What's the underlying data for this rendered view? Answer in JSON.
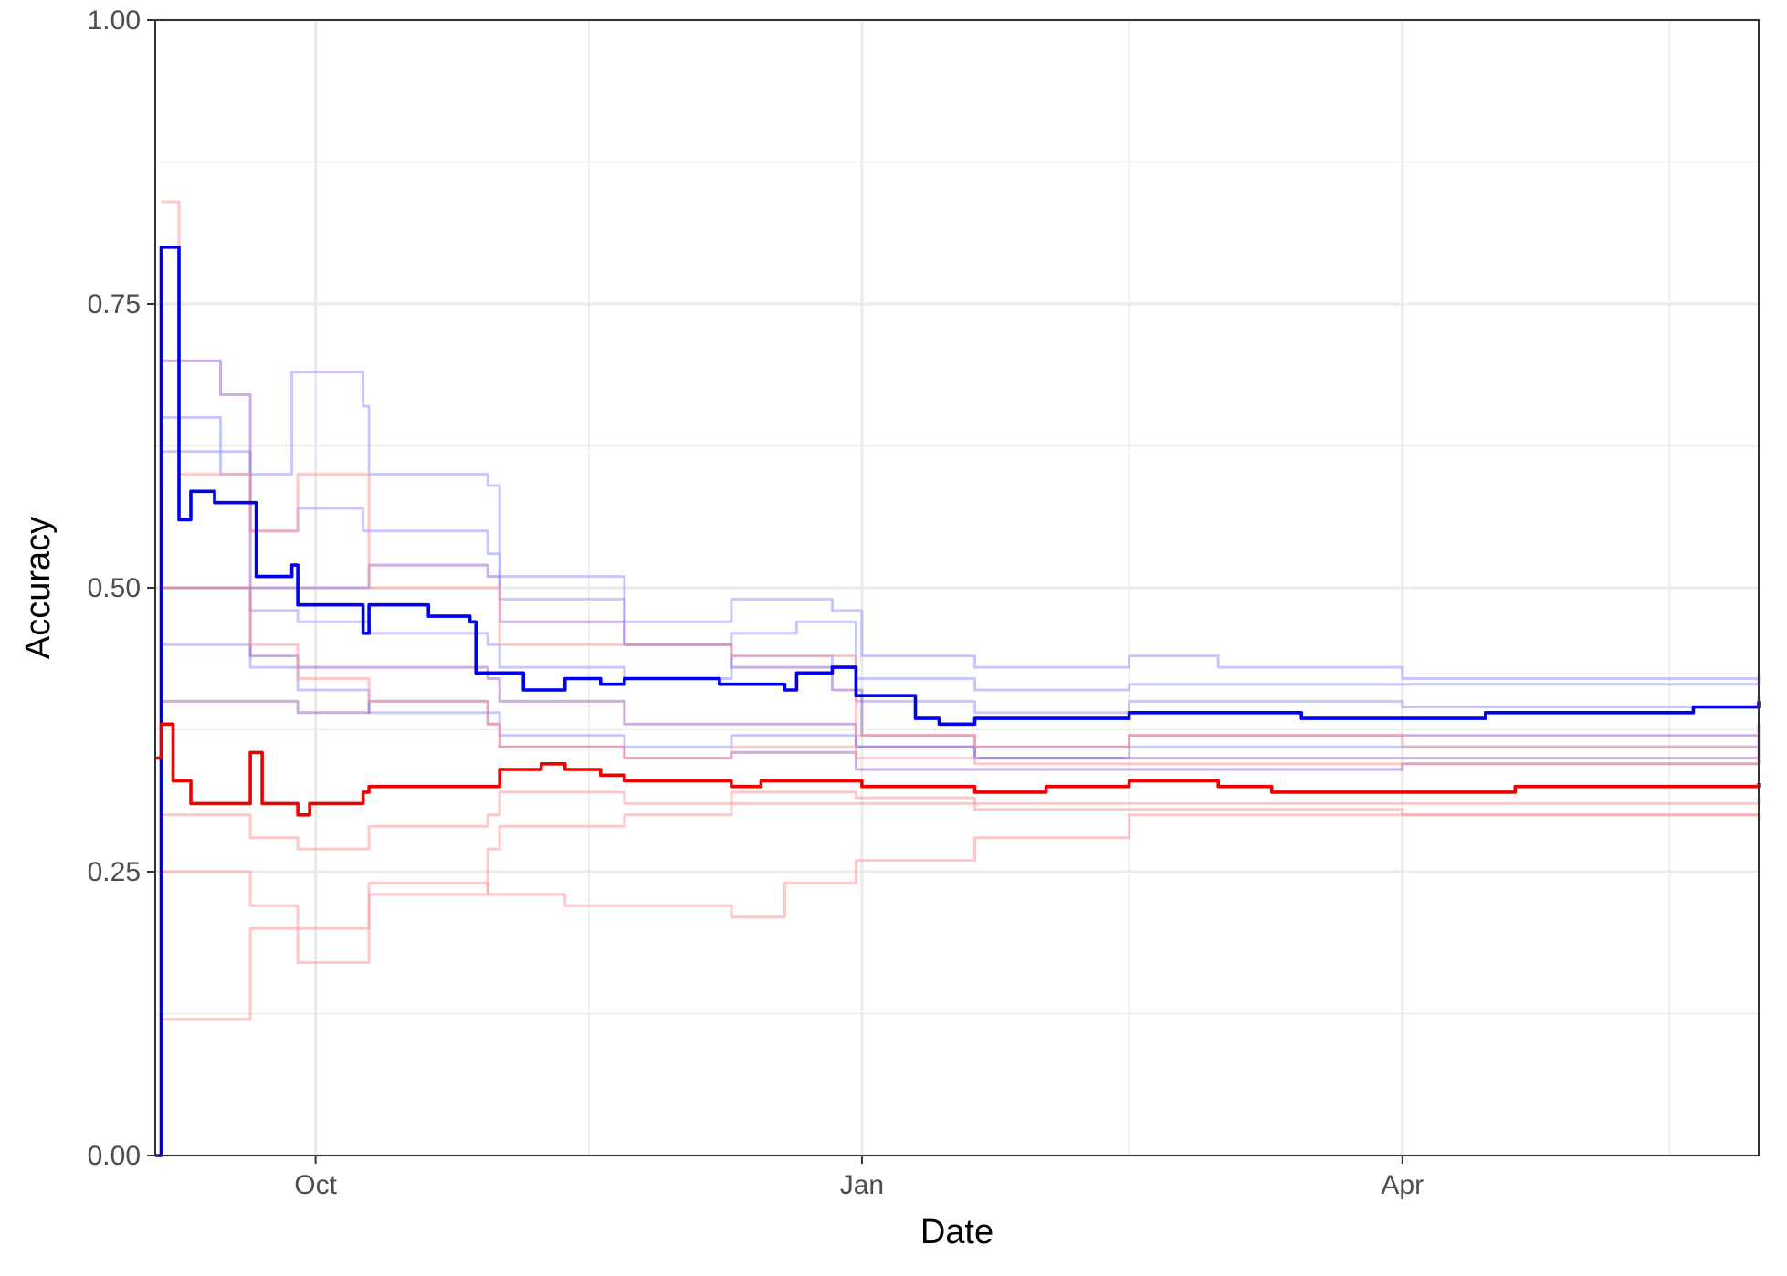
{
  "chart_data": {
    "type": "line",
    "xlabel": "Date",
    "ylabel": "Accuracy",
    "xlim": [
      "2019-09-04",
      "2020-05-31"
    ],
    "ylim": [
      0,
      1
    ],
    "x_ticks": [
      {
        "date": "2019-10-01",
        "label": "Oct"
      },
      {
        "date": "2020-01-01",
        "label": "Jan"
      },
      {
        "date": "2020-04-01",
        "label": "Apr"
      }
    ],
    "x_minor_ticks": [
      "2019-11-16",
      "2020-02-15",
      "2020-05-16"
    ],
    "y_ticks": [
      {
        "value": 0,
        "label": "0.00"
      },
      {
        "value": 0.25,
        "label": "0.25"
      },
      {
        "value": 0.5,
        "label": "0.50"
      },
      {
        "value": 0.75,
        "label": "0.75"
      },
      {
        "value": 1,
        "label": "1.00"
      }
    ],
    "y_minor_ticks": [
      0.125,
      0.375,
      0.625,
      0.875
    ],
    "grid": true,
    "legend": "none",
    "colors": {
      "blue": "#0000ee",
      "red": "#ee0000",
      "light_blue": "#9999ff",
      "light_red": "#ff9999",
      "purple": "#8a4cbf",
      "grid": "#ebebeb",
      "axis": "#333333"
    },
    "series": [
      {
        "role": "highlight",
        "color": "blue",
        "opacity": 1,
        "points": [
          [
            "2019-09-04",
            0
          ],
          [
            "2019-09-05",
            0.8
          ],
          [
            "2019-09-08",
            0.56
          ],
          [
            "2019-09-10",
            0.585
          ],
          [
            "2019-09-14",
            0.575
          ],
          [
            "2019-09-20",
            0.575
          ],
          [
            "2019-09-21",
            0.51
          ],
          [
            "2019-09-27",
            0.52
          ],
          [
            "2019-09-28",
            0.485
          ],
          [
            "2019-10-08",
            0.485
          ],
          [
            "2019-10-09",
            0.46
          ],
          [
            "2019-10-10",
            0.485
          ],
          [
            "2019-10-20",
            0.475
          ],
          [
            "2019-10-27",
            0.47
          ],
          [
            "2019-10-28",
            0.425
          ],
          [
            "2019-11-01",
            0.425
          ],
          [
            "2019-11-05",
            0.41
          ],
          [
            "2019-11-10",
            0.41
          ],
          [
            "2019-11-12",
            0.42
          ],
          [
            "2019-11-18",
            0.415
          ],
          [
            "2019-11-22",
            0.42
          ],
          [
            "2019-12-08",
            0.415
          ],
          [
            "2019-12-10",
            0.415
          ],
          [
            "2019-12-19",
            0.41
          ],
          [
            "2019-12-21",
            0.425
          ],
          [
            "2019-12-27",
            0.43
          ],
          [
            "2019-12-31",
            0.405
          ],
          [
            "2020-01-05",
            0.405
          ],
          [
            "2020-01-10",
            0.385
          ],
          [
            "2020-01-14",
            0.38
          ],
          [
            "2020-01-20",
            0.385
          ],
          [
            "2020-02-05",
            0.385
          ],
          [
            "2020-02-15",
            0.39
          ],
          [
            "2020-03-01",
            0.39
          ],
          [
            "2020-03-15",
            0.385
          ],
          [
            "2020-04-01",
            0.385
          ],
          [
            "2020-04-10",
            0.385
          ],
          [
            "2020-04-15",
            0.39
          ],
          [
            "2020-05-01",
            0.39
          ],
          [
            "2020-05-10",
            0.39
          ],
          [
            "2020-05-20",
            0.395
          ],
          [
            "2020-05-31",
            0.4
          ]
        ]
      },
      {
        "role": "highlight",
        "color": "red",
        "opacity": 1,
        "points": [
          [
            "2019-09-04",
            0.35
          ],
          [
            "2019-09-05",
            0.38
          ],
          [
            "2019-09-07",
            0.33
          ],
          [
            "2019-09-10",
            0.31
          ],
          [
            "2019-09-20",
            0.355
          ],
          [
            "2019-09-22",
            0.31
          ],
          [
            "2019-09-27",
            0.31
          ],
          [
            "2019-09-28",
            0.3
          ],
          [
            "2019-09-30",
            0.31
          ],
          [
            "2019-10-09",
            0.32
          ],
          [
            "2019-10-10",
            0.325
          ],
          [
            "2019-10-30",
            0.325
          ],
          [
            "2019-11-01",
            0.34
          ],
          [
            "2019-11-08",
            0.345
          ],
          [
            "2019-11-12",
            0.34
          ],
          [
            "2019-11-18",
            0.335
          ],
          [
            "2019-11-22",
            0.33
          ],
          [
            "2019-12-02",
            0.33
          ],
          [
            "2019-12-10",
            0.325
          ],
          [
            "2019-12-15",
            0.33
          ],
          [
            "2019-12-27",
            0.33
          ],
          [
            "2020-01-01",
            0.325
          ],
          [
            "2020-01-10",
            0.325
          ],
          [
            "2020-01-20",
            0.32
          ],
          [
            "2020-02-01",
            0.325
          ],
          [
            "2020-02-15",
            0.33
          ],
          [
            "2020-03-01",
            0.325
          ],
          [
            "2020-03-10",
            0.32
          ],
          [
            "2020-04-01",
            0.32
          ],
          [
            "2020-04-20",
            0.325
          ],
          [
            "2020-05-10",
            0.325
          ],
          [
            "2020-05-31",
            0.328
          ]
        ]
      },
      {
        "role": "faint",
        "color": "light_blue",
        "opacity": 0.55,
        "points": [
          [
            "2019-09-05",
            0.65
          ],
          [
            "2019-09-15",
            0.6
          ],
          [
            "2019-09-27",
            0.69
          ],
          [
            "2019-10-09",
            0.66
          ],
          [
            "2019-10-10",
            0.6
          ],
          [
            "2019-10-30",
            0.59
          ],
          [
            "2019-11-01",
            0.51
          ],
          [
            "2019-11-22",
            0.47
          ],
          [
            "2019-12-08",
            0.47
          ],
          [
            "2019-12-10",
            0.49
          ],
          [
            "2019-12-27",
            0.48
          ],
          [
            "2020-01-01",
            0.44
          ],
          [
            "2020-01-20",
            0.43
          ],
          [
            "2020-02-15",
            0.44
          ],
          [
            "2020-03-01",
            0.43
          ],
          [
            "2020-04-01",
            0.42
          ],
          [
            "2020-05-31",
            0.425
          ]
        ]
      },
      {
        "role": "faint",
        "color": "light_blue",
        "opacity": 0.55,
        "points": [
          [
            "2019-09-05",
            0.62
          ],
          [
            "2019-09-20",
            0.55
          ],
          [
            "2019-09-28",
            0.57
          ],
          [
            "2019-10-09",
            0.55
          ],
          [
            "2019-10-30",
            0.53
          ],
          [
            "2019-11-01",
            0.49
          ],
          [
            "2019-11-22",
            0.45
          ],
          [
            "2019-12-10",
            0.46
          ],
          [
            "2019-12-21",
            0.47
          ],
          [
            "2019-12-31",
            0.42
          ],
          [
            "2020-01-20",
            0.41
          ],
          [
            "2020-02-15",
            0.415
          ],
          [
            "2020-04-01",
            0.415
          ],
          [
            "2020-05-31",
            0.42
          ]
        ]
      },
      {
        "role": "faint",
        "color": "light_blue",
        "opacity": 0.55,
        "points": [
          [
            "2019-09-05",
            0.5
          ],
          [
            "2019-09-20",
            0.48
          ],
          [
            "2019-09-28",
            0.47
          ],
          [
            "2019-10-10",
            0.46
          ],
          [
            "2019-10-30",
            0.45
          ],
          [
            "2019-11-01",
            0.43
          ],
          [
            "2019-11-22",
            0.42
          ],
          [
            "2019-12-10",
            0.44
          ],
          [
            "2019-12-27",
            0.43
          ],
          [
            "2019-12-31",
            0.4
          ],
          [
            "2020-01-20",
            0.39
          ],
          [
            "2020-02-15",
            0.4
          ],
          [
            "2020-04-01",
            0.395
          ],
          [
            "2020-05-31",
            0.405
          ]
        ]
      },
      {
        "role": "faint",
        "color": "light_blue",
        "opacity": 0.55,
        "points": [
          [
            "2019-09-05",
            0.45
          ],
          [
            "2019-09-20",
            0.43
          ],
          [
            "2019-09-28",
            0.41
          ],
          [
            "2019-10-10",
            0.39
          ],
          [
            "2019-10-30",
            0.39
          ],
          [
            "2019-11-01",
            0.37
          ],
          [
            "2019-11-22",
            0.36
          ],
          [
            "2019-12-10",
            0.37
          ],
          [
            "2019-12-27",
            0.37
          ],
          [
            "2019-12-31",
            0.36
          ],
          [
            "2020-01-20",
            0.35
          ],
          [
            "2020-02-15",
            0.36
          ],
          [
            "2020-04-01",
            0.36
          ],
          [
            "2020-05-31",
            0.37
          ]
        ]
      },
      {
        "role": "faint",
        "color": "purple",
        "opacity": 0.45,
        "points": [
          [
            "2019-09-05",
            0.7
          ],
          [
            "2019-09-15",
            0.67
          ],
          [
            "2019-09-20",
            0.5
          ],
          [
            "2019-09-28",
            0.5
          ],
          [
            "2019-10-10",
            0.52
          ],
          [
            "2019-10-30",
            0.51
          ],
          [
            "2019-11-01",
            0.47
          ],
          [
            "2019-11-22",
            0.45
          ],
          [
            "2019-12-10",
            0.43
          ],
          [
            "2019-12-27",
            0.41
          ],
          [
            "2020-01-01",
            0.37
          ],
          [
            "2020-01-20",
            0.36
          ],
          [
            "2020-02-15",
            0.37
          ],
          [
            "2020-04-01",
            0.37
          ],
          [
            "2020-05-31",
            0.38
          ]
        ]
      },
      {
        "role": "faint",
        "color": "purple",
        "opacity": 0.45,
        "points": [
          [
            "2019-09-05",
            0.5
          ],
          [
            "2019-09-20",
            0.44
          ],
          [
            "2019-09-28",
            0.43
          ],
          [
            "2019-10-10",
            0.43
          ],
          [
            "2019-10-30",
            0.42
          ],
          [
            "2019-11-01",
            0.4
          ],
          [
            "2019-11-22",
            0.38
          ],
          [
            "2019-12-10",
            0.38
          ],
          [
            "2019-12-31",
            0.36
          ],
          [
            "2020-01-20",
            0.35
          ],
          [
            "2020-04-01",
            0.35
          ],
          [
            "2020-05-31",
            0.36
          ]
        ]
      },
      {
        "role": "faint",
        "color": "purple",
        "opacity": 0.45,
        "points": [
          [
            "2019-09-05",
            0.4
          ],
          [
            "2019-09-20",
            0.4
          ],
          [
            "2019-09-28",
            0.39
          ],
          [
            "2019-10-10",
            0.4
          ],
          [
            "2019-10-30",
            0.38
          ],
          [
            "2019-11-01",
            0.36
          ],
          [
            "2019-11-22",
            0.35
          ],
          [
            "2019-12-10",
            0.355
          ],
          [
            "2019-12-31",
            0.34
          ],
          [
            "2020-01-20",
            0.34
          ],
          [
            "2020-04-01",
            0.345
          ],
          [
            "2020-05-31",
            0.35
          ]
        ]
      },
      {
        "role": "faint",
        "color": "light_red",
        "opacity": 0.55,
        "points": [
          [
            "2019-09-05",
            0.84
          ],
          [
            "2019-09-08",
            0.6
          ],
          [
            "2019-09-20",
            0.55
          ],
          [
            "2019-09-28",
            0.6
          ],
          [
            "2019-10-10",
            0.5
          ],
          [
            "2019-10-30",
            0.5
          ],
          [
            "2019-11-01",
            0.45
          ],
          [
            "2019-11-22",
            0.45
          ],
          [
            "2019-12-10",
            0.44
          ],
          [
            "2019-12-31",
            0.37
          ],
          [
            "2020-01-20",
            0.36
          ],
          [
            "2020-02-15",
            0.37
          ],
          [
            "2020-04-01",
            0.36
          ],
          [
            "2020-05-31",
            0.37
          ]
        ]
      },
      {
        "role": "faint",
        "color": "light_red",
        "opacity": 0.55,
        "points": [
          [
            "2019-09-05",
            0.5
          ],
          [
            "2019-09-20",
            0.45
          ],
          [
            "2019-09-28",
            0.42
          ],
          [
            "2019-10-10",
            0.4
          ],
          [
            "2019-10-30",
            0.38
          ],
          [
            "2019-11-01",
            0.36
          ],
          [
            "2019-11-22",
            0.35
          ],
          [
            "2019-12-10",
            0.36
          ],
          [
            "2019-12-31",
            0.35
          ],
          [
            "2020-01-20",
            0.345
          ],
          [
            "2020-04-01",
            0.345
          ],
          [
            "2020-05-31",
            0.355
          ]
        ]
      },
      {
        "role": "faint",
        "color": "light_red",
        "opacity": 0.55,
        "points": [
          [
            "2019-09-05",
            0.3
          ],
          [
            "2019-09-20",
            0.28
          ],
          [
            "2019-09-28",
            0.27
          ],
          [
            "2019-10-10",
            0.29
          ],
          [
            "2019-10-30",
            0.3
          ],
          [
            "2019-11-01",
            0.32
          ],
          [
            "2019-11-22",
            0.31
          ],
          [
            "2019-12-10",
            0.32
          ],
          [
            "2019-12-31",
            0.315
          ],
          [
            "2020-01-20",
            0.31
          ],
          [
            "2020-04-01",
            0.31
          ],
          [
            "2020-05-31",
            0.315
          ]
        ]
      },
      {
        "role": "faint",
        "color": "light_red",
        "opacity": 0.55,
        "points": [
          [
            "2019-09-05",
            0.25
          ],
          [
            "2019-09-20",
            0.22
          ],
          [
            "2019-09-28",
            0.2
          ],
          [
            "2019-10-10",
            0.23
          ],
          [
            "2019-10-30",
            0.27
          ],
          [
            "2019-11-01",
            0.29
          ],
          [
            "2019-11-22",
            0.3
          ],
          [
            "2019-12-10",
            0.31
          ],
          [
            "2019-12-31",
            0.31
          ],
          [
            "2020-01-20",
            0.305
          ],
          [
            "2020-04-01",
            0.3
          ],
          [
            "2020-05-31",
            0.3
          ]
        ]
      },
      {
        "role": "faint",
        "color": "light_red",
        "opacity": 0.55,
        "points": [
          [
            "2019-09-05",
            0.12
          ],
          [
            "2019-09-20",
            0.2
          ],
          [
            "2019-09-28",
            0.17
          ],
          [
            "2019-10-10",
            0.24
          ],
          [
            "2019-10-30",
            0.23
          ],
          [
            "2019-11-01",
            0.23
          ],
          [
            "2019-11-12",
            0.22
          ],
          [
            "2019-11-22",
            0.22
          ],
          [
            "2019-12-10",
            0.21
          ],
          [
            "2019-12-19",
            0.24
          ],
          [
            "2019-12-31",
            0.26
          ],
          [
            "2020-01-20",
            0.28
          ],
          [
            "2020-02-15",
            0.3
          ],
          [
            "2020-04-01",
            0.3
          ],
          [
            "2020-05-31",
            0.295
          ]
        ]
      }
    ]
  }
}
